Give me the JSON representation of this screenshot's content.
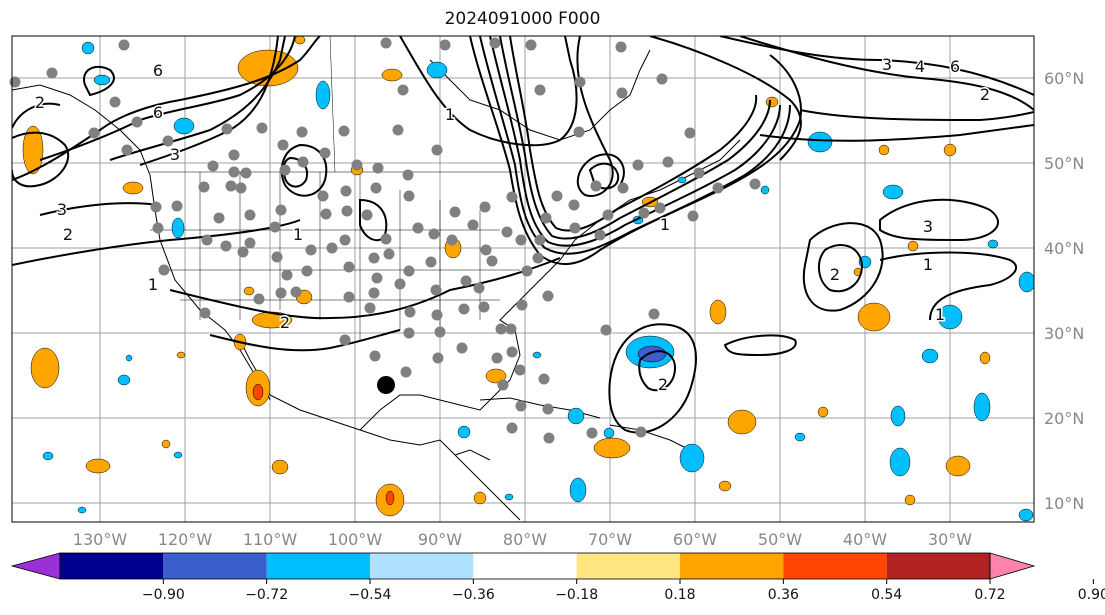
{
  "title": "2024091000 F000",
  "map": {
    "lat_ticks": [
      "60°N",
      "50°N",
      "40°N",
      "30°N",
      "20°N",
      "10°N"
    ],
    "lon_ticks": [
      "130°W",
      "120°W",
      "110°W",
      "100°W",
      "90°W",
      "80°W",
      "70°W",
      "60°W",
      "50°W",
      "40°W",
      "30°W"
    ],
    "contour_labels": [
      "3",
      "4",
      "6",
      "2",
      "1",
      "3",
      "2",
      "1",
      "1",
      "2",
      "6",
      "3",
      "6",
      "2",
      "1",
      "2",
      "1",
      "3",
      "1",
      "2"
    ],
    "colors": {
      "contour": "#000000",
      "grid": "#a0a0a0",
      "station_dot": "#808080",
      "marker_dot": "#000000"
    }
  },
  "colorbar": {
    "colors": [
      "#9b30d9",
      "#000090",
      "#3a5fcd",
      "#00bfff",
      "#b0e2ff",
      "#ffffff",
      "#ffe680",
      "#ffa500",
      "#ff4500",
      "#b22222",
      "#ff82ab"
    ],
    "tick_labels": [
      "−0.90",
      "−0.72",
      "−0.54",
      "−0.36",
      "−0.18",
      "0.18",
      "0.36",
      "0.54",
      "0.72",
      "0.90"
    ]
  }
}
